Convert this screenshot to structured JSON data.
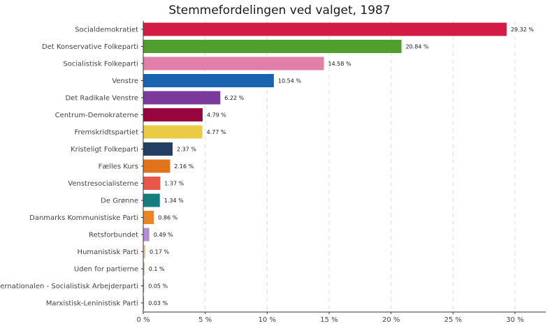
{
  "chart_data": {
    "type": "bar",
    "orientation": "horizontal",
    "title": "Stemmefordelingen ved valget, 1987",
    "xlabel": "",
    "ylabel": "",
    "xlim": [
      0,
      32.5
    ],
    "x_ticks": [
      0,
      5,
      10,
      15,
      20,
      25,
      30
    ],
    "x_tick_labels": [
      "0 %",
      "5 %",
      "10 %",
      "15 %",
      "20 %",
      "25 %",
      "30 %"
    ],
    "grid": "vertical dashed",
    "legend": "none",
    "categories": [
      "Socialdemokratiet",
      "Det Konservative Folkeparti",
      "Socialistisk Folkeparti",
      "Venstre",
      "Det Radikale Venstre",
      "Centrum-Demokraterne",
      "Fremskridtspartiet",
      "Kristeligt Folkeparti",
      "Fælles Kurs",
      "Venstresocialisterne",
      "De Grønne",
      "Danmarks Kommunistiske Parti",
      "Retsforbundet",
      "Humanistisk Parti",
      "Uden for partierne",
      "Internationalen - Socialistisk Arbejderparti",
      "Marxistisk-Leninistisk Parti"
    ],
    "values": [
      29.32,
      20.84,
      14.58,
      10.54,
      6.22,
      4.79,
      4.77,
      2.37,
      2.16,
      1.37,
      1.34,
      0.86,
      0.49,
      0.17,
      0.1,
      0.05,
      0.03
    ],
    "value_labels": [
      "29.32 %",
      "20.84 %",
      "14.58 %",
      "10.54 %",
      "6.22 %",
      "4.79 %",
      "4.77 %",
      "2.37 %",
      "2.16 %",
      "1.37 %",
      "1.34 %",
      "0.86 %",
      "0.49 %",
      "0.17 %",
      "0.1 %",
      "0.05 %",
      "0.03 %"
    ],
    "colors": [
      "#d21c44",
      "#4f9e2e",
      "#e27fa8",
      "#1a63b0",
      "#7a3a9c",
      "#97053f",
      "#ebcb46",
      "#233f66",
      "#e2731b",
      "#e9574a",
      "#167e80",
      "#ea8522",
      "#b38cd6",
      "#e6c3a0",
      "#c8b59f",
      "#cc8888",
      "#b0a392"
    ]
  }
}
